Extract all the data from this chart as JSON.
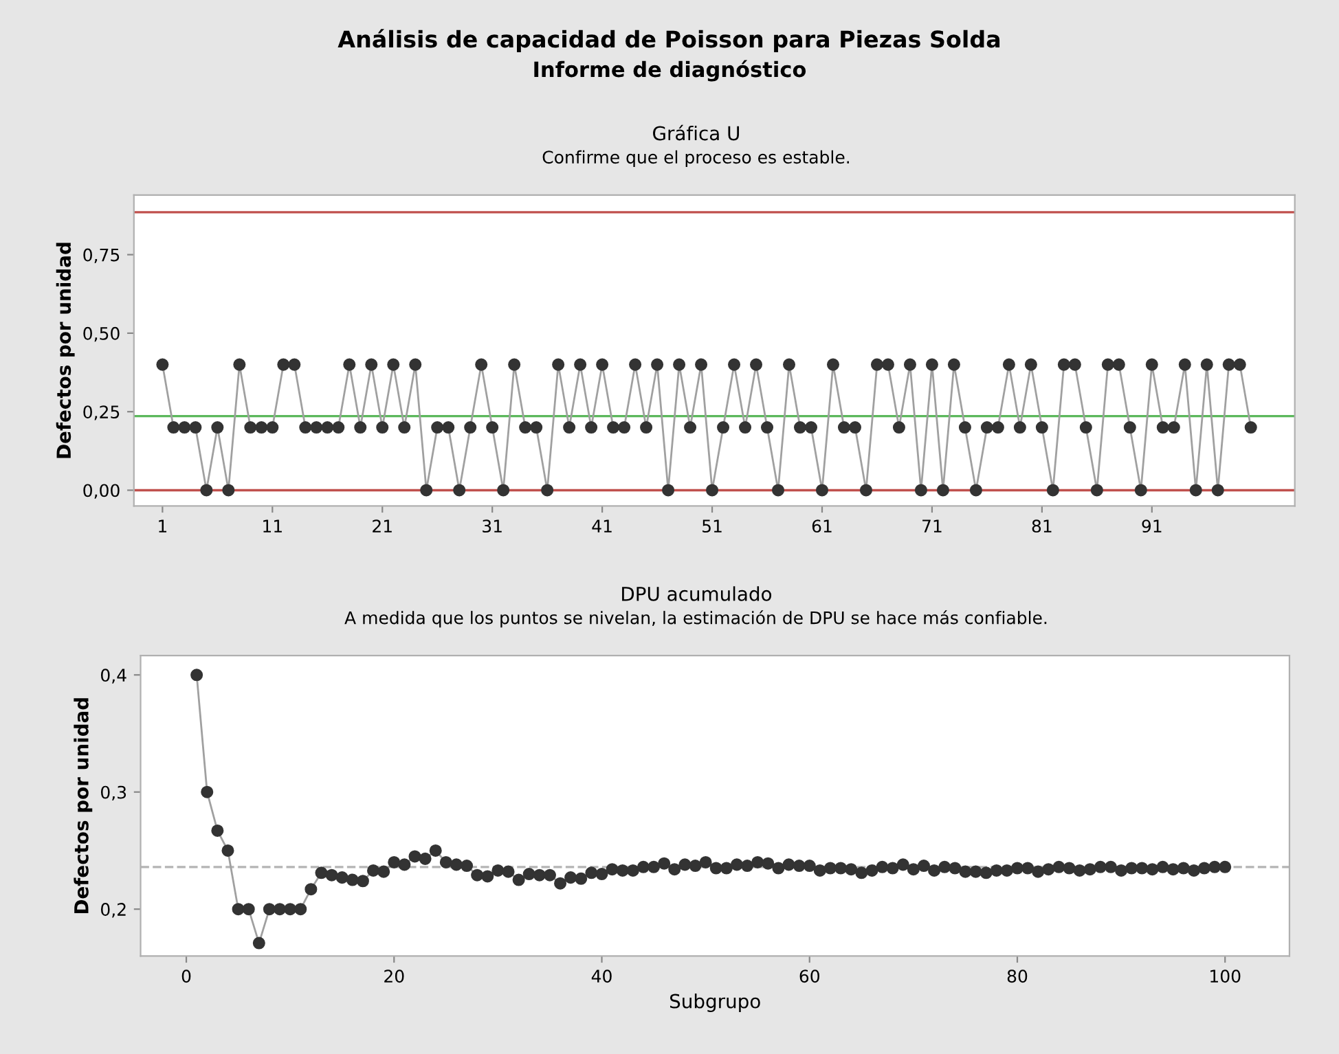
{
  "chart_data": [
    {
      "type": "line",
      "title": "Gráfica U",
      "subtitle": "Confirme que el proceso es estable.",
      "ylabel": "Defectos por unidad",
      "annotations": [
        "Análisis de capacidad de Poisson para Piezas Solda",
        "Informe de diagnóstico"
      ],
      "x": [
        1,
        2,
        3,
        4,
        5,
        6,
        7,
        8,
        9,
        10,
        11,
        12,
        13,
        14,
        15,
        16,
        17,
        18,
        19,
        20,
        21,
        22,
        23,
        24,
        25,
        26,
        27,
        28,
        29,
        30,
        31,
        32,
        33,
        34,
        35,
        36,
        37,
        38,
        39,
        40,
        41,
        42,
        43,
        44,
        45,
        46,
        47,
        48,
        49,
        50,
        51,
        52,
        53,
        54,
        55,
        56,
        57,
        58,
        59,
        60,
        61,
        62,
        63,
        64,
        65,
        66,
        67,
        68,
        69,
        70,
        71,
        72,
        73,
        74,
        75,
        76,
        77,
        78,
        79,
        80,
        81,
        82,
        83,
        84,
        85,
        86,
        87,
        88,
        89,
        90,
        91,
        92,
        93,
        94,
        95,
        96,
        97,
        98,
        99,
        100
      ],
      "series": [
        {
          "color": "#333333",
          "values": [
            0.4,
            0.2,
            0.2,
            0.2,
            0,
            0.2,
            0,
            0.4,
            0.2,
            0.2,
            0.2,
            0.4,
            0.4,
            0.2,
            0.2,
            0.2,
            0.2,
            0.4,
            0.2,
            0.4,
            0.2,
            0.4,
            0.2,
            0.4,
            0,
            0.2,
            0.2,
            0,
            0.2,
            0.4,
            0.2,
            0,
            0.4,
            0.2,
            0.2,
            0,
            0.4,
            0.2,
            0.4,
            0.2,
            0.4,
            0.2,
            0.2,
            0.4,
            0.2,
            0.4,
            0,
            0.4,
            0.2,
            0.4,
            0,
            0.2,
            0.4,
            0.2,
            0.4,
            0.2,
            0,
            0.4,
            0.2,
            0.2,
            0,
            0.4,
            0.2,
            0.2,
            0,
            0.4,
            0.4,
            0.2,
            0.4,
            0,
            0.4,
            0,
            0.4,
            0.2,
            0,
            0.2,
            0.2,
            0.4,
            0.2,
            0.4,
            0.2,
            0,
            0.4,
            0.4,
            0.2,
            0,
            0.4,
            0.4,
            0.2,
            0,
            0.4,
            0.2,
            0.2,
            0.4,
            0,
            0.4,
            0,
            0.4,
            0.4,
            0.2
          ]
        }
      ],
      "marker": "circle",
      "line_style": "solid",
      "grid": false,
      "legend": false,
      "xlim": [
        -1.6,
        104
      ],
      "xticks": [
        1,
        11,
        21,
        31,
        41,
        51,
        61,
        71,
        81,
        91
      ],
      "ylim": [
        -0.05,
        0.94
      ],
      "yticks": [
        {
          "value": 0,
          "label": "0,00"
        },
        {
          "value": 0.25,
          "label": "0,25"
        },
        {
          "value": 0.5,
          "label": "0,50"
        },
        {
          "value": 0.75,
          "label": "0,75"
        }
      ],
      "ref_lines": [
        {
          "axis": "y",
          "value": 0.885,
          "color": "#c0504d",
          "line_style": "solid"
        },
        {
          "axis": "y",
          "value": 0,
          "color": "#c0504d",
          "line_style": "solid"
        },
        {
          "axis": "y",
          "value": 0.236,
          "color": "#5cb85c",
          "line_style": "solid"
        }
      ]
    },
    {
      "type": "line",
      "title": "DPU acumulado",
      "subtitle": "A medida que los puntos se nivelan, la estimación de DPU se hace más confiable.",
      "xlabel": "Subgrupo",
      "ylabel": "Defectos por unidad",
      "x": [
        1,
        2,
        3,
        4,
        5,
        6,
        7,
        8,
        9,
        10,
        11,
        12,
        13,
        14,
        15,
        16,
        17,
        18,
        19,
        20,
        21,
        22,
        23,
        24,
        25,
        26,
        27,
        28,
        29,
        30,
        31,
        32,
        33,
        34,
        35,
        36,
        37,
        38,
        39,
        40,
        41,
        42,
        43,
        44,
        45,
        46,
        47,
        48,
        49,
        50,
        51,
        52,
        53,
        54,
        55,
        56,
        57,
        58,
        59,
        60,
        61,
        62,
        63,
        64,
        65,
        66,
        67,
        68,
        69,
        70,
        71,
        72,
        73,
        74,
        75,
        76,
        77,
        78,
        79,
        80,
        81,
        82,
        83,
        84,
        85,
        86,
        87,
        88,
        89,
        90,
        91,
        92,
        93,
        94,
        95,
        96,
        97,
        98,
        99,
        100
      ],
      "series": [
        {
          "color": "#333333",
          "values": [
            0.4,
            0.3,
            0.267,
            0.25,
            0.2,
            0.2,
            0.171,
            0.2,
            0.2,
            0.2,
            0.2,
            0.217,
            0.231,
            0.229,
            0.227,
            0.225,
            0.224,
            0.233,
            0.232,
            0.24,
            0.238,
            0.245,
            0.243,
            0.25,
            0.24,
            0.238,
            0.237,
            0.229,
            0.228,
            0.233,
            0.232,
            0.225,
            0.23,
            0.229,
            0.229,
            0.222,
            0.227,
            0.226,
            0.231,
            0.23,
            0.234,
            0.233,
            0.233,
            0.236,
            0.236,
            0.239,
            0.234,
            0.238,
            0.237,
            0.24,
            0.235,
            0.235,
            0.238,
            0.237,
            0.24,
            0.239,
            0.235,
            0.238,
            0.237,
            0.237,
            0.233,
            0.235,
            0.235,
            0.234,
            0.231,
            0.233,
            0.236,
            0.235,
            0.238,
            0.234,
            0.237,
            0.233,
            0.236,
            0.235,
            0.232,
            0.232,
            0.231,
            0.233,
            0.233,
            0.235,
            0.235,
            0.232,
            0.234,
            0.236,
            0.235,
            0.233,
            0.234,
            0.236,
            0.236,
            0.233,
            0.235,
            0.235,
            0.234,
            0.236,
            0.234,
            0.235,
            0.233,
            0.235,
            0.236,
            0.236
          ]
        }
      ],
      "marker": "circle",
      "line_style": "solid",
      "grid": false,
      "legend": false,
      "xlim": [
        -4.4,
        106.2
      ],
      "xticks": [
        0,
        20,
        40,
        60,
        80,
        100
      ],
      "ylim": [
        0.16,
        0.4165
      ],
      "yticks": [
        {
          "value": 0.2,
          "label": "0,2"
        },
        {
          "value": 0.3,
          "label": "0,3"
        },
        {
          "value": 0.4,
          "label": "0,4"
        }
      ],
      "ref_lines": [
        {
          "axis": "y",
          "value": 0.236,
          "color": "#b4b4b4",
          "line_style": "dashed"
        }
      ]
    }
  ]
}
